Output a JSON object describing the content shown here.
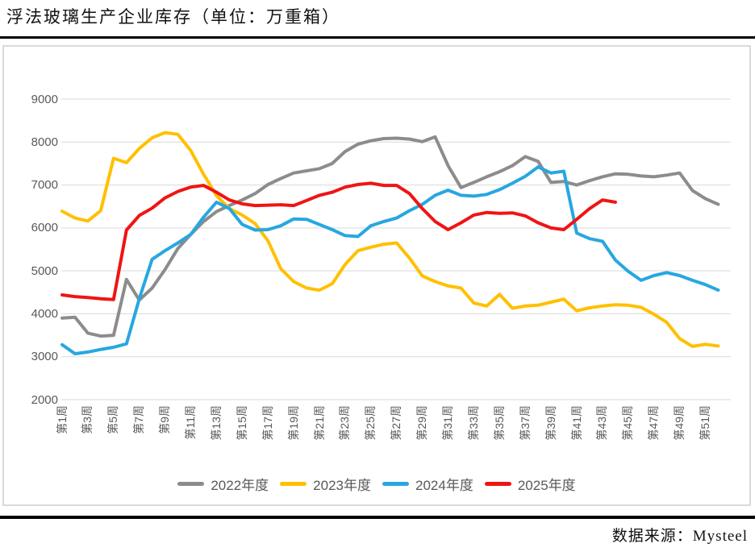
{
  "header": {
    "title": "浮法玻璃生产企业库存（单位：万重箱）"
  },
  "footer": {
    "source": "数据来源：Mysteel"
  },
  "chart_data": {
    "type": "line",
    "title": "浮法玻璃生产企业库存（单位：万重箱）",
    "ylabel": "",
    "xlabel": "",
    "ylim": [
      2000,
      9000
    ],
    "y_ticks": [
      9000,
      8000,
      7000,
      6000,
      5000,
      4000,
      3000,
      2000
    ],
    "x_tick_labels": [
      "第1周",
      "第3周",
      "第5周",
      "第7周",
      "第9周",
      "第11周",
      "第13周",
      "第15周",
      "第17周",
      "第19周",
      "第21周",
      "第23周",
      "第25周",
      "第27周",
      "第29周",
      "第31周",
      "第33周",
      "第35周",
      "第37周",
      "第39周",
      "第41周",
      "第43周",
      "第45周",
      "第47周",
      "第49周",
      "第51周"
    ],
    "x_weeks_total": 52,
    "grid": true,
    "gridline_color": "#d9d9d9",
    "tick_label_color": "#595959",
    "legend_position": "bottom",
    "series": [
      {
        "name": "2022年度",
        "color": "#8c8c8c",
        "start_week": 1,
        "values": [
          3900,
          3920,
          3550,
          3480,
          3500,
          4800,
          4320,
          4600,
          5030,
          5520,
          5850,
          6150,
          6380,
          6520,
          6650,
          6800,
          7010,
          7150,
          7280,
          7330,
          7380,
          7500,
          7780,
          7950,
          8030,
          8080,
          8090,
          8070,
          8010,
          8120,
          7450,
          6940,
          7060,
          7190,
          7310,
          7450,
          7660,
          7550,
          7060,
          7080,
          7000,
          7100,
          7190,
          7260,
          7250,
          7210,
          7190,
          7230,
          7280,
          6870,
          6680,
          6550
        ]
      },
      {
        "name": "2023年度",
        "color": "#ffc000",
        "start_week": 1,
        "values": [
          6390,
          6230,
          6160,
          6400,
          7620,
          7520,
          7850,
          8100,
          8220,
          8180,
          7800,
          7250,
          6750,
          6450,
          6300,
          6100,
          5700,
          5050,
          4750,
          4600,
          4550,
          4700,
          5150,
          5470,
          5550,
          5620,
          5650,
          5300,
          4880,
          4750,
          4650,
          4600,
          4250,
          4180,
          4450,
          4130,
          4180,
          4200,
          4270,
          4340,
          4070,
          4140,
          4180,
          4210,
          4200,
          4150,
          3990,
          3800,
          3420,
          3240,
          3290,
          3250
        ]
      },
      {
        "name": "2024年度",
        "color": "#27a7e0",
        "start_week": 1,
        "values": [
          3280,
          3070,
          3110,
          3170,
          3220,
          3300,
          4350,
          5270,
          5470,
          5650,
          5850,
          6250,
          6600,
          6450,
          6080,
          5950,
          5960,
          6050,
          6210,
          6200,
          6080,
          5960,
          5820,
          5800,
          6050,
          6150,
          6230,
          6400,
          6550,
          6760,
          6880,
          6760,
          6740,
          6780,
          6890,
          7040,
          7200,
          7420,
          7280,
          7320,
          5880,
          5750,
          5690,
          5250,
          4990,
          4780,
          4890,
          4960,
          4890,
          4780,
          4680,
          4550
        ]
      },
      {
        "name": "2025年度",
        "color": "#f01414",
        "start_week": 1,
        "values": [
          4440,
          4400,
          4380,
          4350,
          4330,
          5950,
          6290,
          6460,
          6700,
          6850,
          6950,
          6990,
          6830,
          6650,
          6560,
          6520,
          6530,
          6540,
          6520,
          6640,
          6760,
          6830,
          6950,
          7010,
          7040,
          6990,
          6990,
          6800,
          6450,
          6150,
          5960,
          6120,
          6300,
          6360,
          6340,
          6350,
          6280,
          6120,
          6000,
          5960,
          6200,
          6450,
          6650,
          6600
        ]
      }
    ]
  }
}
